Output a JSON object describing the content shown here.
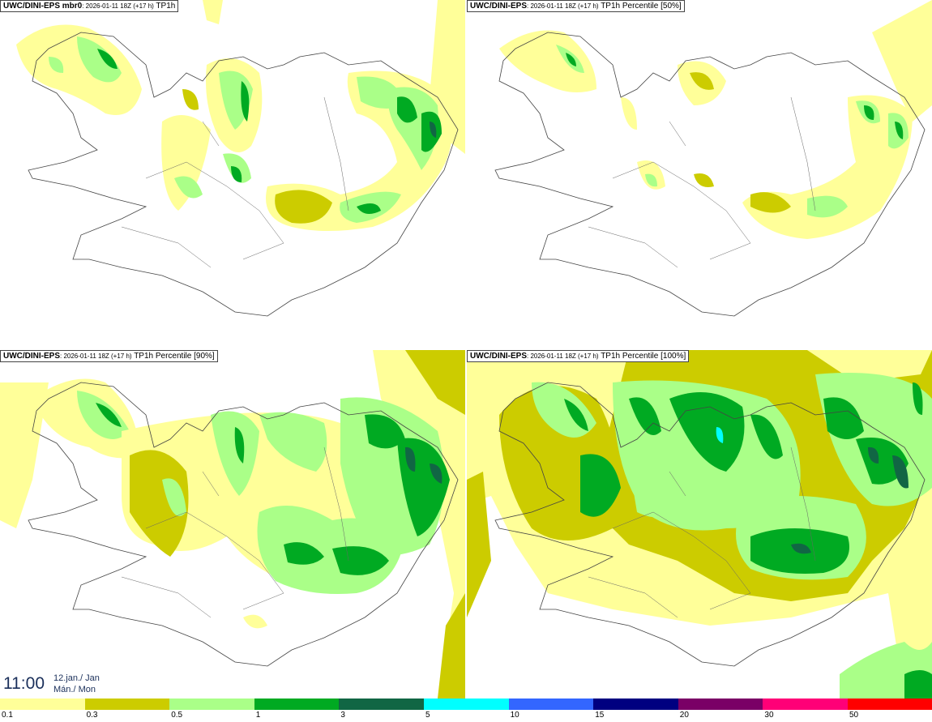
{
  "panels": [
    {
      "model": "UWC/DINI-EPS mbr0",
      "meta": ": 2026-01-11 18Z (+17 h)",
      "field": "TP1h"
    },
    {
      "model": "UWC/DINI-EPS",
      "meta": ": 2026-01-11 18Z (+17 h)",
      "field": "TP1h Percentile [50%]"
    },
    {
      "model": "UWC/DINI-EPS",
      "meta": ": 2026-01-11 18Z (+17 h)",
      "field": "TP1h Percentile [90%]"
    },
    {
      "model": "UWC/DINI-EPS",
      "meta": ": 2026-01-11 18Z (+17 h)",
      "field": "TP1h Percentile [100%]"
    }
  ],
  "valid_time": {
    "time": "11:00",
    "date_line1": "12.jan./ Jan",
    "date_line2": "Mán./ Mon"
  },
  "legend": {
    "ticks": [
      "0.1",
      "0.3",
      "0.5",
      "1",
      "3",
      "5",
      "10",
      "15",
      "20",
      "30",
      "50"
    ],
    "colors": [
      "#ffff99",
      "#cccc00",
      "#aaff88",
      "#00aa22",
      "#116644",
      "#00ffff",
      "#3366ff",
      "#000080",
      "#7a0066",
      "#ff0077",
      "#ff0000"
    ]
  },
  "colors": {
    "light_yellow": "#ffff99",
    "olive": "#cccc00",
    "light_green": "#aaff88",
    "green": "#00aa22",
    "dark_green": "#116644",
    "cyan": "#00ffff"
  }
}
